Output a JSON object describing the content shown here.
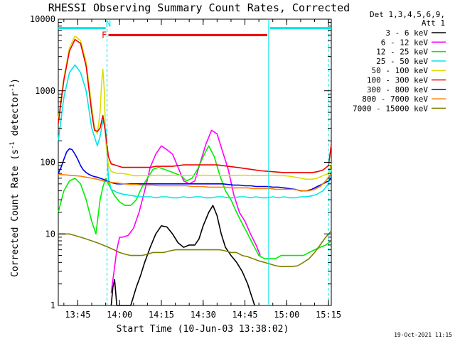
{
  "chart_data": {
    "type": "line",
    "title": "RHESSI Observing Summary Count Rates, Corrected",
    "xlabel": "Start Time (10-Jun-03 13:38:02)",
    "ylabel_main": "Corrected Count Rate (s",
    "ylabel_sup1": "-1",
    "ylabel_mid": " detector",
    "ylabel_sup2": "-1",
    "ylabel_end": ")",
    "yscale": "log",
    "xlim": [
      0,
      98
    ],
    "ylim": [
      1,
      10000
    ],
    "x_unit": "minutes after 13:38:02",
    "x_ticks": [
      {
        "label": "13:45",
        "x": 7
      },
      {
        "label": "14:00",
        "x": 22
      },
      {
        "label": "14:15",
        "x": 37
      },
      {
        "label": "14:30",
        "x": 52
      },
      {
        "label": "14:45",
        "x": 67
      },
      {
        "label": "15:00",
        "x": 82
      },
      {
        "label": "15:15",
        "x": 97
      }
    ],
    "y_ticks": [
      {
        "label": "1",
        "y": 1
      },
      {
        "label": "10",
        "y": 10
      },
      {
        "label": "100",
        "y": 100
      },
      {
        "label": "1000",
        "y": 1000
      },
      {
        "label": "10000",
        "y": 10000
      }
    ],
    "legend_header": [
      "Det 1,3,4,5,6,9,",
      "Att 1"
    ],
    "legend_position": "top-right, outside plot",
    "series": [
      {
        "name": "3 - 6 keV",
        "color": "#000000",
        "x": [
          19,
          19.6,
          20.2,
          21,
          26,
          28,
          29.5,
          31,
          33,
          35,
          37,
          39,
          41,
          43,
          45,
          47,
          49,
          50.5,
          52,
          54,
          55.5,
          57,
          58.5,
          60,
          62,
          64,
          66,
          68,
          69,
          70.5
        ],
        "y": [
          1,
          1.8,
          2.3,
          1,
          1,
          1.8,
          2.6,
          4,
          6.5,
          10,
          13,
          12.5,
          10,
          7.5,
          6.5,
          7,
          7,
          8.5,
          13,
          20,
          25,
          18,
          10,
          6.5,
          5,
          4,
          3,
          2,
          1.5,
          1
        ]
      },
      {
        "name": "6 - 12 keV",
        "color": "#ff00ff",
        "x": [
          19,
          20,
          21,
          22,
          23,
          25,
          27,
          29,
          31,
          33,
          35,
          37,
          39,
          41,
          43,
          45,
          47,
          49,
          51,
          53,
          55,
          57,
          59,
          61,
          63,
          65,
          67,
          69,
          71,
          72.5
        ],
        "y": [
          1.5,
          3,
          6,
          9,
          9,
          9.5,
          12,
          20,
          40,
          85,
          130,
          170,
          150,
          130,
          85,
          55,
          50,
          55,
          100,
          180,
          280,
          250,
          140,
          80,
          35,
          20,
          15,
          10,
          7,
          5
        ]
      },
      {
        "name": "12 - 25 keV",
        "color": "#00ee00",
        "x": [
          0,
          2,
          4,
          6,
          8,
          10,
          12,
          13.5,
          15,
          16,
          17,
          18,
          20,
          22,
          24,
          26,
          28,
          30,
          32,
          34,
          36,
          38,
          40,
          42,
          44,
          46,
          48,
          50,
          52,
          54,
          56,
          58,
          60,
          62,
          64,
          66,
          68,
          70,
          72,
          74,
          76,
          78,
          80,
          82,
          84,
          86,
          88,
          90,
          92,
          94,
          96,
          98
        ],
        "y": [
          20,
          40,
          55,
          60,
          50,
          30,
          15,
          10,
          30,
          45,
          60,
          50,
          35,
          28,
          25,
          25,
          30,
          45,
          60,
          80,
          85,
          80,
          75,
          70,
          65,
          55,
          60,
          80,
          120,
          170,
          120,
          65,
          40,
          30,
          20,
          14,
          10,
          7,
          5,
          4.5,
          4.5,
          4.5,
          5,
          5,
          5,
          5,
          5,
          5.5,
          6,
          6.5,
          7,
          8
        ]
      },
      {
        "name": "25 - 50 keV",
        "color": "#00e5e5",
        "x": [
          0,
          2,
          4,
          6,
          8,
          10,
          12,
          14,
          15,
          16,
          17,
          18,
          19,
          21,
          23,
          25,
          27,
          29,
          31,
          33,
          35,
          37,
          39,
          41,
          43,
          45,
          47,
          49,
          51,
          53,
          55,
          57,
          59,
          61,
          63,
          65,
          67,
          69,
          71,
          73,
          75,
          77,
          79,
          81,
          83,
          85,
          87,
          89,
          91,
          93,
          95,
          97,
          98
        ],
        "y": [
          200,
          800,
          1800,
          2300,
          1800,
          1000,
          300,
          170,
          230,
          380,
          300,
          60,
          42,
          38,
          36,
          35,
          34,
          33,
          33,
          33,
          32,
          33,
          33,
          32,
          32,
          33,
          32,
          33,
          33,
          32,
          32,
          33,
          33,
          32,
          32,
          33,
          33,
          32,
          33,
          32,
          32,
          33,
          32,
          33,
          32,
          32,
          33,
          33,
          34,
          36,
          40,
          50,
          80
        ]
      },
      {
        "name": "50 - 100 keV",
        "color": "#dddd00",
        "x": [
          0,
          2,
          4,
          6,
          8,
          10,
          12,
          13,
          14,
          15,
          15.5,
          16,
          16.5,
          17,
          18,
          19,
          21,
          23,
          25,
          27,
          29,
          31,
          33,
          35,
          37,
          39,
          41,
          43,
          45,
          47,
          49,
          51,
          53,
          55,
          57,
          59,
          61,
          63,
          65,
          67,
          69,
          71,
          73,
          75,
          77,
          79,
          81,
          83,
          85,
          87,
          89,
          91,
          93,
          95,
          97,
          98
        ],
        "y": [
          400,
          1500,
          4000,
          5800,
          5000,
          2500,
          600,
          300,
          250,
          500,
          1200,
          2000,
          1000,
          200,
          90,
          75,
          70,
          70,
          68,
          65,
          65,
          65,
          65,
          66,
          66,
          65,
          66,
          66,
          65,
          66,
          65,
          66,
          66,
          65,
          66,
          65,
          66,
          65,
          66,
          66,
          65,
          66,
          65,
          66,
          66,
          65,
          65,
          64,
          62,
          60,
          58,
          58,
          60,
          65,
          70,
          95
        ]
      },
      {
        "name": "100 - 300 keV",
        "color": "#ee0000",
        "x": [
          0,
          2,
          4,
          6,
          8,
          10,
          12,
          13,
          14,
          15,
          16,
          17,
          18,
          19,
          21,
          23,
          25,
          27,
          29,
          31,
          33,
          35,
          37,
          39,
          41,
          43,
          45,
          47,
          49,
          51,
          53,
          55,
          57,
          59,
          61,
          63,
          65,
          67,
          69,
          71,
          73,
          75,
          77,
          79,
          81,
          83,
          85,
          87,
          89,
          91,
          93,
          95,
          97,
          98
        ],
        "y": [
          350,
          1400,
          3600,
          5200,
          4600,
          2200,
          500,
          280,
          270,
          300,
          450,
          250,
          120,
          95,
          90,
          85,
          85,
          85,
          85,
          85,
          85,
          88,
          88,
          88,
          88,
          90,
          92,
          92,
          92,
          92,
          92,
          92,
          92,
          90,
          88,
          86,
          84,
          82,
          80,
          78,
          76,
          75,
          74,
          73,
          72,
          72,
          72,
          72,
          72,
          72,
          74,
          78,
          90,
          180
        ]
      },
      {
        "name": "300 - 800 keV",
        "color": "#0000ee",
        "x": [
          0,
          1,
          2,
          3,
          4,
          5,
          6,
          7,
          8,
          9,
          10,
          11,
          12,
          13,
          14,
          15,
          16,
          17,
          18,
          19,
          21,
          23,
          25,
          27,
          29,
          31,
          33,
          35,
          37,
          39,
          41,
          43,
          45,
          47,
          49,
          51,
          53,
          55,
          57,
          59,
          61,
          63,
          65,
          67,
          69,
          71,
          73,
          75,
          77,
          79,
          81,
          83,
          85,
          87,
          89,
          91,
          93,
          95,
          97,
          98
        ],
        "y": [
          70,
          85,
          110,
          140,
          155,
          150,
          130,
          110,
          90,
          78,
          72,
          68,
          65,
          63,
          62,
          60,
          58,
          56,
          54,
          52,
          50,
          50,
          50,
          50,
          50,
          50,
          50,
          50,
          50,
          50,
          50,
          50,
          50,
          50,
          50,
          50,
          50,
          50,
          50,
          50,
          49,
          48,
          48,
          47,
          47,
          46,
          46,
          46,
          45,
          45,
          44,
          43,
          42,
          40,
          40,
          42,
          46,
          50,
          55,
          60
        ]
      },
      {
        "name": "800 - 7000 keV",
        "color": "#ff8000",
        "x": [
          0,
          2,
          4,
          6,
          8,
          10,
          12,
          14,
          16,
          18,
          20,
          22,
          24,
          26,
          28,
          30,
          32,
          34,
          36,
          38,
          40,
          42,
          44,
          46,
          48,
          50,
          52,
          54,
          56,
          58,
          60,
          62,
          64,
          66,
          68,
          70,
          72,
          74,
          76,
          78,
          80,
          82,
          84,
          86,
          88,
          90,
          92,
          94,
          96,
          98
        ],
        "y": [
          68,
          67,
          66,
          65,
          64,
          62,
          60,
          58,
          55,
          53,
          52,
          51,
          50,
          49,
          49,
          48,
          48,
          48,
          47,
          47,
          47,
          47,
          47,
          47,
          46,
          46,
          46,
          45,
          45,
          45,
          45,
          44,
          44,
          44,
          44,
          43,
          43,
          43,
          43,
          42,
          42,
          42,
          42,
          41,
          40,
          40,
          42,
          46,
          55,
          70
        ]
      },
      {
        "name": "7000 - 15000 keV",
        "color": "#808000",
        "x": [
          0,
          2,
          4,
          6,
          8,
          10,
          12,
          14,
          16,
          18,
          20,
          22,
          24,
          26,
          28,
          30,
          32,
          34,
          36,
          38,
          40,
          42,
          44,
          46,
          48,
          50,
          52,
          54,
          56,
          58,
          60,
          62,
          64,
          66,
          68,
          70,
          72,
          74,
          76,
          78,
          80,
          82,
          84,
          86,
          88,
          90,
          92,
          94,
          96,
          98
        ],
        "y": [
          10,
          10,
          10,
          9.5,
          9,
          8.5,
          8,
          7.5,
          7,
          6.5,
          6,
          5.5,
          5.2,
          5,
          5,
          5,
          5.2,
          5.5,
          5.5,
          5.5,
          5.8,
          6,
          6,
          6,
          6,
          6,
          6,
          6,
          6,
          6,
          5.8,
          5.5,
          5.5,
          5,
          4.8,
          4.5,
          4.2,
          4,
          3.8,
          3.6,
          3.5,
          3.5,
          3.5,
          3.6,
          4,
          4.5,
          5.5,
          7,
          9,
          11
        ]
      }
    ],
    "flag_bars": [
      {
        "label": "N",
        "color": "#00e5e5",
        "x_start": 0,
        "x_end": 17,
        "y_value": 7500,
        "label_x": 18
      },
      {
        "label": "",
        "color": "#00e5e5",
        "x_start": 76,
        "x_end": 98,
        "y_value": 7500,
        "label_x": 76
      },
      {
        "label": "F",
        "color": "#ee0000",
        "x_start": 18,
        "x_end": 75,
        "y_value": 6000,
        "label_x": 16.5
      }
    ],
    "vertical_markers": [
      {
        "x": 17.5,
        "style": "dashed",
        "color": "#00e5e5"
      },
      {
        "x": 75.5,
        "style": "solid",
        "color": "#00e5e5"
      },
      {
        "x": 97,
        "style": "dashed",
        "color": "#00e5e5"
      }
    ],
    "timestamp": "19-Oct-2021 11:15"
  }
}
